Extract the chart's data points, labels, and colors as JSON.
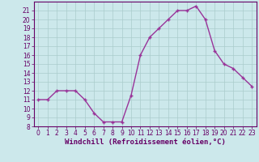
{
  "x": [
    0,
    1,
    2,
    3,
    4,
    5,
    6,
    7,
    8,
    9,
    10,
    11,
    12,
    13,
    14,
    15,
    16,
    17,
    18,
    19,
    20,
    21,
    22,
    23
  ],
  "y": [
    11,
    11,
    12,
    12,
    12,
    11,
    9.5,
    8.5,
    8.5,
    8.5,
    11.5,
    16,
    18,
    19,
    20,
    21,
    21,
    21.5,
    20,
    16.5,
    15,
    14.5,
    13.5,
    12.5
  ],
  "line_color": "#993399",
  "marker": "P",
  "marker_size": 2.5,
  "linewidth": 1.0,
  "background_color": "#cce8eb",
  "grid_color": "#aacccc",
  "ylim": [
    8,
    22
  ],
  "xlim": [
    -0.5,
    23.5
  ],
  "yticks": [
    8,
    9,
    10,
    11,
    12,
    13,
    14,
    15,
    16,
    17,
    18,
    19,
    20,
    21
  ],
  "xticks": [
    0,
    1,
    2,
    3,
    4,
    5,
    6,
    7,
    8,
    9,
    10,
    11,
    12,
    13,
    14,
    15,
    16,
    17,
    18,
    19,
    20,
    21,
    22,
    23
  ],
  "xlabel": "Windchill (Refroidissement éolien,°C)",
  "xlabel_fontsize": 6.5,
  "tick_fontsize": 5.5,
  "tick_color": "#660066",
  "axis_color": "#660066"
}
